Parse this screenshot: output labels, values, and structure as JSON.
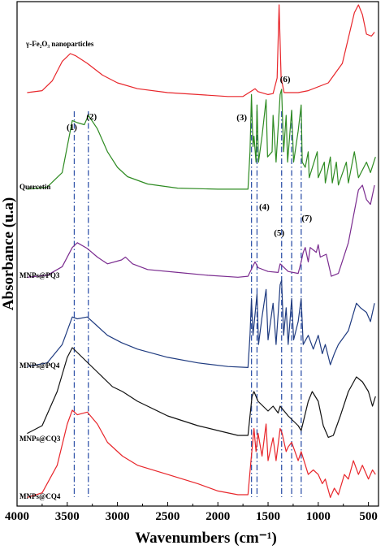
{
  "chart_data": {
    "type": "line",
    "xlabel": "Wavenumbers (cm⁻¹)",
    "ylabel": "Absorbance (u.a)",
    "xlim": [
      4000,
      400
    ],
    "x_reversed": true,
    "x_ticks": [
      "4000",
      "3500",
      "3000",
      "2500",
      "2000",
      "1500",
      "1000",
      "500"
    ],
    "y_ticks": [],
    "grid": false,
    "series": [
      {
        "name": "γ-Fe₂O₃ nanoparticles",
        "color": "#e8262b",
        "points": [
          [
            3900,
            0.1
          ],
          [
            3750,
            0.12
          ],
          [
            3650,
            0.22
          ],
          [
            3550,
            0.42
          ],
          [
            3470,
            0.5
          ],
          [
            3420,
            0.48
          ],
          [
            3300,
            0.4
          ],
          [
            3150,
            0.28
          ],
          [
            3000,
            0.2
          ],
          [
            2800,
            0.14
          ],
          [
            2500,
            0.1
          ],
          [
            2200,
            0.08
          ],
          [
            1900,
            0.06
          ],
          [
            1750,
            0.06
          ],
          [
            1660,
            0.12
          ],
          [
            1630,
            0.14
          ],
          [
            1600,
            0.11
          ],
          [
            1500,
            0.08
          ],
          [
            1450,
            0.09
          ],
          [
            1410,
            0.25
          ],
          [
            1390,
            1.0
          ],
          [
            1370,
            0.25
          ],
          [
            1340,
            0.1
          ],
          [
            1200,
            0.1
          ],
          [
            1100,
            0.12
          ],
          [
            900,
            0.2
          ],
          [
            760,
            0.4
          ],
          [
            640,
            0.92
          ],
          [
            600,
            1.0
          ],
          [
            560,
            0.9
          ],
          [
            520,
            0.7
          ],
          [
            470,
            0.68
          ],
          [
            440,
            0.72
          ]
        ]
      },
      {
        "name": "Quercetin",
        "color": "#2e8b22",
        "points": [
          [
            3900,
            0.04
          ],
          [
            3700,
            0.06
          ],
          [
            3550,
            0.2
          ],
          [
            3450,
            0.7
          ],
          [
            3400,
            0.68
          ],
          [
            3330,
            0.66
          ],
          [
            3290,
            0.75
          ],
          [
            3200,
            0.62
          ],
          [
            3100,
            0.4
          ],
          [
            3000,
            0.25
          ],
          [
            2900,
            0.16
          ],
          [
            2700,
            0.09
          ],
          [
            2400,
            0.05
          ],
          [
            2000,
            0.04
          ],
          [
            1700,
            0.04
          ],
          [
            1680,
            0.4
          ],
          [
            1665,
            0.95
          ],
          [
            1650,
            0.45
          ],
          [
            1640,
            0.55
          ],
          [
            1620,
            0.3
          ],
          [
            1610,
            0.85
          ],
          [
            1595,
            0.3
          ],
          [
            1560,
            0.55
          ],
          [
            1520,
            0.9
          ],
          [
            1505,
            0.35
          ],
          [
            1460,
            0.4
          ],
          [
            1450,
            0.75
          ],
          [
            1420,
            0.3
          ],
          [
            1380,
            0.95
          ],
          [
            1365,
            1.0
          ],
          [
            1345,
            0.4
          ],
          [
            1320,
            0.75
          ],
          [
            1305,
            0.3
          ],
          [
            1265,
            0.8
          ],
          [
            1245,
            0.3
          ],
          [
            1200,
            0.6
          ],
          [
            1170,
            0.85
          ],
          [
            1160,
            0.3
          ],
          [
            1130,
            0.25
          ],
          [
            1100,
            0.4
          ],
          [
            1090,
            0.15
          ],
          [
            1010,
            0.4
          ],
          [
            1000,
            0.15
          ],
          [
            940,
            0.3
          ],
          [
            930,
            0.1
          ],
          [
            880,
            0.35
          ],
          [
            860,
            0.1
          ],
          [
            820,
            0.3
          ],
          [
            800,
            0.08
          ],
          [
            720,
            0.3
          ],
          [
            700,
            0.1
          ],
          [
            640,
            0.4
          ],
          [
            600,
            0.15
          ],
          [
            520,
            0.3
          ],
          [
            480,
            0.2
          ],
          [
            430,
            0.35
          ]
        ]
      },
      {
        "name": "MNPs@PQ3",
        "color": "#7a2b8f",
        "points": [
          [
            3900,
            0.04
          ],
          [
            3700,
            0.06
          ],
          [
            3550,
            0.15
          ],
          [
            3450,
            0.35
          ],
          [
            3400,
            0.4
          ],
          [
            3300,
            0.34
          ],
          [
            3200,
            0.25
          ],
          [
            3100,
            0.18
          ],
          [
            2960,
            0.22
          ],
          [
            2920,
            0.25
          ],
          [
            2850,
            0.18
          ],
          [
            2700,
            0.12
          ],
          [
            2400,
            0.09
          ],
          [
            2100,
            0.06
          ],
          [
            1800,
            0.04
          ],
          [
            1700,
            0.05
          ],
          [
            1630,
            0.2
          ],
          [
            1600,
            0.14
          ],
          [
            1500,
            0.1
          ],
          [
            1400,
            0.09
          ],
          [
            1380,
            0.18
          ],
          [
            1300,
            0.1
          ],
          [
            1200,
            0.08
          ],
          [
            1170,
            0.2
          ],
          [
            1150,
            0.3
          ],
          [
            1130,
            0.35
          ],
          [
            1100,
            0.2
          ],
          [
            1080,
            0.35
          ],
          [
            1020,
            0.3
          ],
          [
            1000,
            0.38
          ],
          [
            980,
            0.25
          ],
          [
            920,
            0.28
          ],
          [
            870,
            0.05
          ],
          [
            800,
            0.08
          ],
          [
            700,
            0.4
          ],
          [
            600,
            0.95
          ],
          [
            560,
            1.0
          ],
          [
            520,
            0.85
          ],
          [
            480,
            0.8
          ],
          [
            440,
            1.0
          ]
        ]
      },
      {
        "name": "MNPs@PQ4",
        "color": "#1f3b80",
        "points": [
          [
            3900,
            0.06
          ],
          [
            3700,
            0.1
          ],
          [
            3550,
            0.3
          ],
          [
            3450,
            0.6
          ],
          [
            3400,
            0.58
          ],
          [
            3300,
            0.6
          ],
          [
            3200,
            0.5
          ],
          [
            3100,
            0.4
          ],
          [
            2960,
            0.32
          ],
          [
            2800,
            0.25
          ],
          [
            2500,
            0.16
          ],
          [
            2200,
            0.1
          ],
          [
            1900,
            0.06
          ],
          [
            1700,
            0.05
          ],
          [
            1680,
            0.4
          ],
          [
            1665,
            0.8
          ],
          [
            1650,
            0.4
          ],
          [
            1610,
            0.85
          ],
          [
            1595,
            0.3
          ],
          [
            1560,
            0.6
          ],
          [
            1520,
            0.9
          ],
          [
            1500,
            0.35
          ],
          [
            1450,
            0.75
          ],
          [
            1420,
            0.3
          ],
          [
            1380,
            0.95
          ],
          [
            1365,
            1.0
          ],
          [
            1345,
            0.4
          ],
          [
            1320,
            0.7
          ],
          [
            1300,
            0.3
          ],
          [
            1265,
            0.8
          ],
          [
            1245,
            0.35
          ],
          [
            1200,
            0.55
          ],
          [
            1170,
            0.8
          ],
          [
            1150,
            0.3
          ],
          [
            1100,
            0.4
          ],
          [
            1050,
            0.25
          ],
          [
            1000,
            0.4
          ],
          [
            960,
            0.2
          ],
          [
            930,
            0.3
          ],
          [
            880,
            0.08
          ],
          [
            840,
            0.2
          ],
          [
            800,
            0.3
          ],
          [
            700,
            0.45
          ],
          [
            620,
            0.75
          ],
          [
            580,
            0.7
          ],
          [
            520,
            0.65
          ],
          [
            480,
            0.55
          ],
          [
            440,
            0.75
          ]
        ]
      },
      {
        "name": "MNPs@CQ3",
        "color": "#111111",
        "points": [
          [
            3900,
            0.12
          ],
          [
            3750,
            0.2
          ],
          [
            3600,
            0.55
          ],
          [
            3500,
            0.9
          ],
          [
            3450,
            1.0
          ],
          [
            3400,
            0.95
          ],
          [
            3300,
            0.85
          ],
          [
            3200,
            0.75
          ],
          [
            3050,
            0.6
          ],
          [
            2950,
            0.55
          ],
          [
            2800,
            0.45
          ],
          [
            2500,
            0.3
          ],
          [
            2200,
            0.2
          ],
          [
            2000,
            0.15
          ],
          [
            1800,
            0.1
          ],
          [
            1700,
            0.1
          ],
          [
            1660,
            0.5
          ],
          [
            1640,
            0.55
          ],
          [
            1600,
            0.45
          ],
          [
            1500,
            0.35
          ],
          [
            1450,
            0.4
          ],
          [
            1400,
            0.33
          ],
          [
            1380,
            0.4
          ],
          [
            1300,
            0.3
          ],
          [
            1250,
            0.25
          ],
          [
            1200,
            0.2
          ],
          [
            1170,
            0.15
          ],
          [
            1100,
            0.45
          ],
          [
            1060,
            0.55
          ],
          [
            1000,
            0.45
          ],
          [
            950,
            0.2
          ],
          [
            900,
            0.08
          ],
          [
            850,
            0.1
          ],
          [
            780,
            0.3
          ],
          [
            700,
            0.55
          ],
          [
            620,
            0.7
          ],
          [
            560,
            0.65
          ],
          [
            500,
            0.55
          ],
          [
            460,
            0.4
          ],
          [
            430,
            0.5
          ]
        ]
      },
      {
        "name": "MNPs@CQ4",
        "color": "#e8262b",
        "points": [
          [
            3900,
            0.05
          ],
          [
            3750,
            0.1
          ],
          [
            3600,
            0.4
          ],
          [
            3500,
            0.85
          ],
          [
            3450,
            1.0
          ],
          [
            3400,
            0.95
          ],
          [
            3300,
            0.98
          ],
          [
            3200,
            0.85
          ],
          [
            3100,
            0.65
          ],
          [
            2950,
            0.5
          ],
          [
            2800,
            0.4
          ],
          [
            2500,
            0.3
          ],
          [
            2200,
            0.2
          ],
          [
            2000,
            0.12
          ],
          [
            1800,
            0.08
          ],
          [
            1700,
            0.08
          ],
          [
            1670,
            0.45
          ],
          [
            1640,
            0.8
          ],
          [
            1620,
            0.55
          ],
          [
            1600,
            0.75
          ],
          [
            1560,
            0.5
          ],
          [
            1520,
            0.85
          ],
          [
            1500,
            0.45
          ],
          [
            1450,
            0.7
          ],
          [
            1420,
            0.45
          ],
          [
            1380,
            0.8
          ],
          [
            1360,
            0.75
          ],
          [
            1320,
            0.55
          ],
          [
            1300,
            0.6
          ],
          [
            1265,
            0.65
          ],
          [
            1200,
            0.45
          ],
          [
            1170,
            0.55
          ],
          [
            1100,
            0.3
          ],
          [
            1050,
            0.35
          ],
          [
            1000,
            0.3
          ],
          [
            960,
            0.2
          ],
          [
            930,
            0.25
          ],
          [
            880,
            0.05
          ],
          [
            840,
            0.15
          ],
          [
            800,
            0.08
          ],
          [
            740,
            0.3
          ],
          [
            700,
            0.25
          ],
          [
            650,
            0.45
          ],
          [
            600,
            0.3
          ],
          [
            560,
            0.4
          ],
          [
            500,
            0.25
          ],
          [
            460,
            0.35
          ],
          [
            430,
            0.3
          ]
        ]
      }
    ],
    "peak_markers": [
      {
        "label": "(1)",
        "x": 3430
      },
      {
        "label": "(2)",
        "x": 3290
      },
      {
        "label": "(3)",
        "x": 1665
      },
      {
        "label": "(4)",
        "x": 1610
      },
      {
        "label": "(5)",
        "x": 1365
      },
      {
        "label": "(6)",
        "x": 1265
      },
      {
        "label": "(7)",
        "x": 1170
      }
    ]
  },
  "colors": {
    "marker_line": "#3355aa",
    "axis": "#000000"
  }
}
